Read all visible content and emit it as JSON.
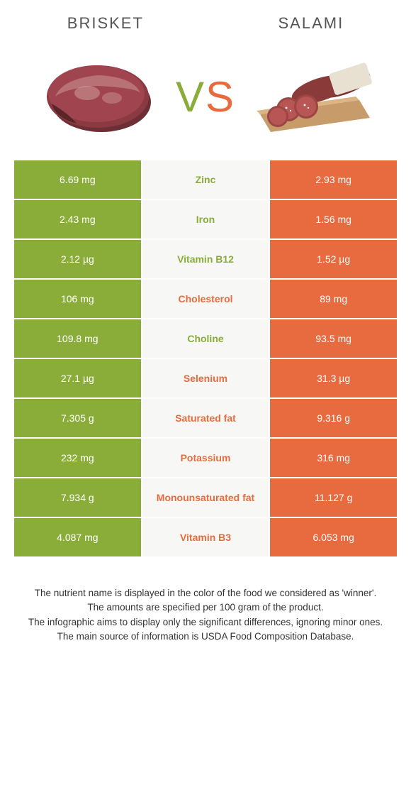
{
  "colors": {
    "left": "#8aad3a",
    "right": "#e86b3f",
    "mid_bg": "#f7f7f5",
    "text_dark": "#333333"
  },
  "header": {
    "left_title": "Brisket",
    "right_title": "Salami"
  },
  "vs": {
    "v": "V",
    "s": "S"
  },
  "rows": [
    {
      "nutrient": "Zinc",
      "left_val": "6.69 mg",
      "right_val": "2.93 mg",
      "winner": "left"
    },
    {
      "nutrient": "Iron",
      "left_val": "2.43 mg",
      "right_val": "1.56 mg",
      "winner": "left"
    },
    {
      "nutrient": "Vitamin B12",
      "left_val": "2.12 µg",
      "right_val": "1.52 µg",
      "winner": "left"
    },
    {
      "nutrient": "Cholesterol",
      "left_val": "106 mg",
      "right_val": "89 mg",
      "winner": "right"
    },
    {
      "nutrient": "Choline",
      "left_val": "109.8 mg",
      "right_val": "93.5 mg",
      "winner": "left"
    },
    {
      "nutrient": "Selenium",
      "left_val": "27.1 µg",
      "right_val": "31.3 µg",
      "winner": "right"
    },
    {
      "nutrient": "Saturated fat",
      "left_val": "7.305 g",
      "right_val": "9.316 g",
      "winner": "right"
    },
    {
      "nutrient": "Potassium",
      "left_val": "232 mg",
      "right_val": "316 mg",
      "winner": "right"
    },
    {
      "nutrient": "Monounsaturated fat",
      "left_val": "7.934 g",
      "right_val": "11.127 g",
      "winner": "right"
    },
    {
      "nutrient": "Vitamin B3",
      "left_val": "4.087 mg",
      "right_val": "6.053 mg",
      "winner": "right"
    }
  ],
  "footer": {
    "line1": "The nutrient name is displayed in the color of the food we considered as 'winner'.",
    "line2": "The amounts are specified per 100 gram of the product.",
    "line3": "The infographic aims to display only the significant differences, ignoring minor ones.",
    "line4": "The main source of information is USDA Food Composition Database."
  }
}
